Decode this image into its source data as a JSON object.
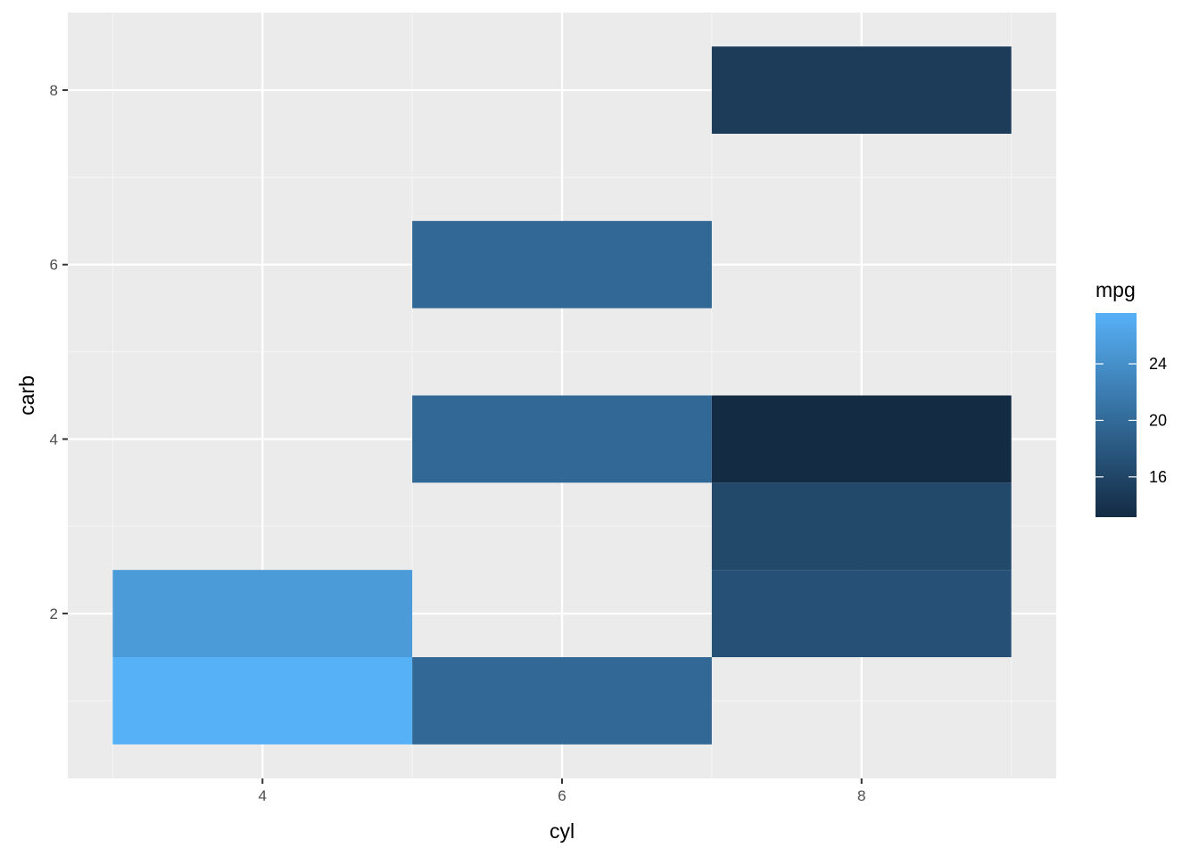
{
  "chart_data": {
    "type": "heatmap",
    "xlabel": "cyl",
    "ylabel": "carb",
    "xlim": [
      2.7,
      9.3
    ],
    "ylim": [
      0.11,
      8.89
    ],
    "x_ticks": [
      4,
      6,
      8
    ],
    "x_minor": [
      3,
      5,
      7,
      9
    ],
    "y_ticks": [
      2,
      4,
      6,
      8
    ],
    "y_minor": [
      1,
      3,
      5,
      7
    ],
    "tile_width": 2,
    "tile_height": 1,
    "grid": true,
    "tiles": [
      {
        "x": 4,
        "y": 1,
        "value": 27.6
      },
      {
        "x": 4,
        "y": 2,
        "value": 25.2
      },
      {
        "x": 6,
        "y": 1,
        "value": 19.75
      },
      {
        "x": 6,
        "y": 4,
        "value": 19.75
      },
      {
        "x": 6,
        "y": 6,
        "value": 19.7
      },
      {
        "x": 8,
        "y": 2,
        "value": 17.15
      },
      {
        "x": 8,
        "y": 3,
        "value": 16.3
      },
      {
        "x": 8,
        "y": 4,
        "value": 13.15
      },
      {
        "x": 8,
        "y": 8,
        "value": 15.0
      }
    ],
    "legend": {
      "title": "mpg",
      "position": "right",
      "min": 13.15,
      "max": 27.6,
      "low_color": "#132B43",
      "high_color": "#56B1F7",
      "ticks": [
        16,
        20,
        24
      ]
    },
    "colors": {
      "panel_background": "#EBEBEB",
      "grid_major": "#FFFFFF",
      "grid_minor": "#F5F5F5",
      "tick_mark": "#333333"
    }
  }
}
